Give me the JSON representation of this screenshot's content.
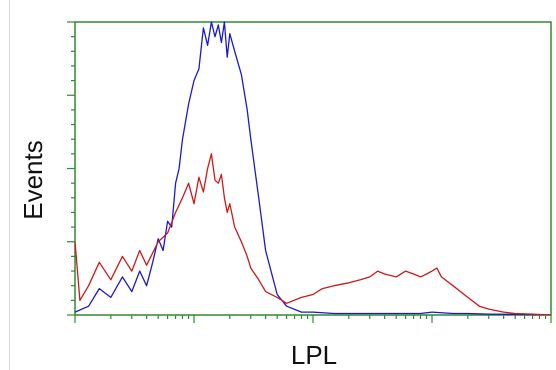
{
  "chart_data": {
    "type": "line",
    "xlabel": "LPL",
    "ylabel": "Events",
    "x_scale": "log",
    "xlim": [
      1,
      10000
    ],
    "ylim": [
      0,
      100
    ],
    "grid": false,
    "legend": "none",
    "frame_color": "#2e8b2e",
    "series": [
      {
        "color": "#1a1acc",
        "x": [
          1,
          1.3,
          1.6,
          2,
          2.5,
          3,
          3.5,
          4,
          4.5,
          5,
          5.5,
          6,
          6.5,
          7,
          7.5,
          8,
          9,
          10,
          11,
          12,
          13,
          14,
          15,
          16,
          17,
          18,
          19,
          20,
          22,
          25,
          28,
          30,
          35,
          40,
          50,
          60,
          80,
          100,
          150,
          200,
          300,
          500,
          800,
          1000,
          1500,
          2000,
          3000,
          5000,
          10000
        ],
        "y": [
          1,
          3,
          9,
          6,
          13,
          8,
          15,
          10,
          18,
          26,
          22,
          32,
          30,
          45,
          50,
          60,
          72,
          80,
          84,
          98,
          92,
          100,
          95,
          99,
          93,
          100,
          88,
          96,
          90,
          82,
          70,
          60,
          40,
          22,
          7,
          3,
          1,
          1,
          0.5,
          0.5,
          0.5,
          0.5,
          0.5,
          1,
          0.5,
          0.5,
          0.3,
          0.2,
          0
        ]
      },
      {
        "color": "#cc1a1a",
        "x": [
          1,
          1.1,
          1.3,
          1.6,
          2,
          2.5,
          3,
          3.5,
          4,
          5,
          6,
          7,
          8,
          9,
          10,
          11,
          12,
          13,
          14,
          15,
          16,
          17,
          18,
          19,
          20,
          22,
          25,
          28,
          30,
          35,
          40,
          50,
          60,
          80,
          100,
          120,
          150,
          200,
          250,
          300,
          350,
          400,
          500,
          600,
          700,
          800,
          900,
          1000,
          1100,
          1200,
          1500,
          2000,
          2500,
          3000,
          4000,
          5000,
          7000,
          10000
        ],
        "y": [
          25,
          5,
          10,
          18,
          12,
          20,
          15,
          22,
          17,
          25,
          28,
          35,
          40,
          45,
          38,
          47,
          42,
          50,
          55,
          46,
          45,
          48,
          40,
          35,
          38,
          30,
          25,
          20,
          16,
          12,
          8,
          6,
          4,
          6,
          7,
          9,
          10,
          11,
          12,
          13,
          15,
          14,
          13,
          15,
          14,
          13,
          14,
          15,
          16,
          13,
          10,
          6,
          3,
          2,
          1,
          0.5,
          0.3,
          0
        ]
      }
    ]
  }
}
